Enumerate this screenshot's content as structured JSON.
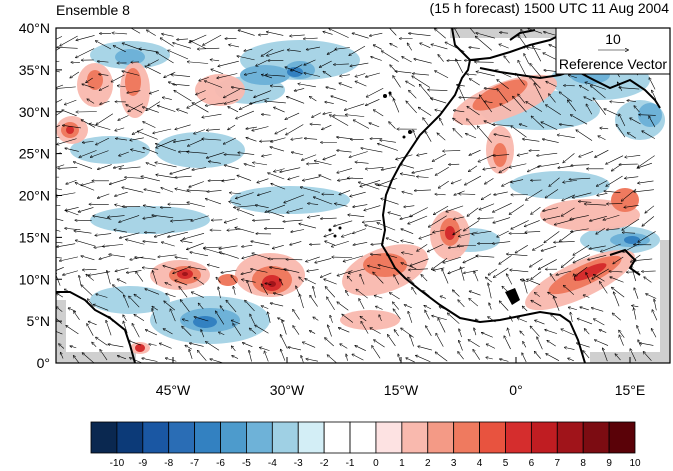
{
  "header": {
    "left_title": "Ensemble 8",
    "right_title": "(15 h forecast) 1500 UTC 11 Aug 2004"
  },
  "reference_vector": {
    "value": "10",
    "label": "Reference Vector"
  },
  "axes": {
    "y_ticks": [
      "40°N",
      "35°N",
      "30°N",
      "25°N",
      "20°N",
      "15°N",
      "10°N",
      "5°N",
      "0°"
    ],
    "x_ticks": [
      "45°W",
      "30°W",
      "15°W",
      "0°",
      "15°E"
    ]
  },
  "colorbar": {
    "labels": [
      "-10",
      "-9",
      "-8",
      "-7",
      "-6",
      "-5",
      "-4",
      "-3",
      "-2",
      "-1",
      "0",
      "1",
      "2",
      "3",
      "4",
      "5",
      "6",
      "7",
      "8",
      "9",
      "10"
    ],
    "colors": [
      "#0a2850",
      "#0c3a78",
      "#1a57a3",
      "#2a6db5",
      "#3381c1",
      "#4d9bcc",
      "#6eb2d8",
      "#9fd0e4",
      "#d3eef6",
      "#ffffff",
      "#ffffff",
      "#fde2e2",
      "#f9b9ae",
      "#f49a86",
      "#ef7a5f",
      "#e8533f",
      "#d52d2d",
      "#c01d22",
      "#a0141a",
      "#7c0c12",
      "#5a0208"
    ]
  },
  "map": {
    "lat_range": [
      0,
      40
    ],
    "lon_range": [
      -58,
      18
    ],
    "field": "perturbation (shaded) and wind vectors"
  }
}
